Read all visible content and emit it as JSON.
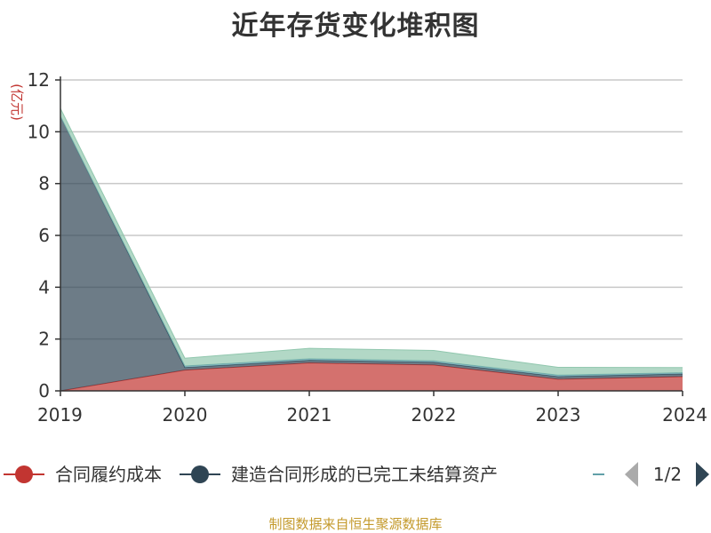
{
  "page": {
    "source": "制图数据来自恒生聚源数据库"
  },
  "legend": {
    "page_text": "1/2"
  },
  "chart_data": {
    "type": "area",
    "stacked": true,
    "title": "近年存货变化堆积图",
    "ylabel": "(亿元)",
    "x": [
      "2019",
      "2020",
      "2021",
      "2022",
      "2023",
      "2024"
    ],
    "ylim": [
      0,
      12
    ],
    "yticks": [
      0,
      2,
      4,
      6,
      8,
      10,
      12
    ],
    "grid": true,
    "legend_position": "bottom",
    "series": [
      {
        "name": "合同履约成本",
        "color": "#c23531",
        "values": [
          0.0,
          0.8,
          1.08,
          1.0,
          0.45,
          0.55
        ]
      },
      {
        "name": "建造合同形成的已完工未结算资产",
        "color": "#2f4554",
        "values": [
          10.6,
          0.1,
          0.1,
          0.1,
          0.1,
          0.1
        ]
      },
      {
        "color": "#61a0a8",
        "values": [
          0.0,
          0.06,
          0.06,
          0.06,
          0.06,
          0.05
        ]
      },
      {
        "color": "#91c7ae",
        "values": [
          0.3,
          0.3,
          0.4,
          0.4,
          0.3,
          0.2
        ]
      }
    ]
  }
}
